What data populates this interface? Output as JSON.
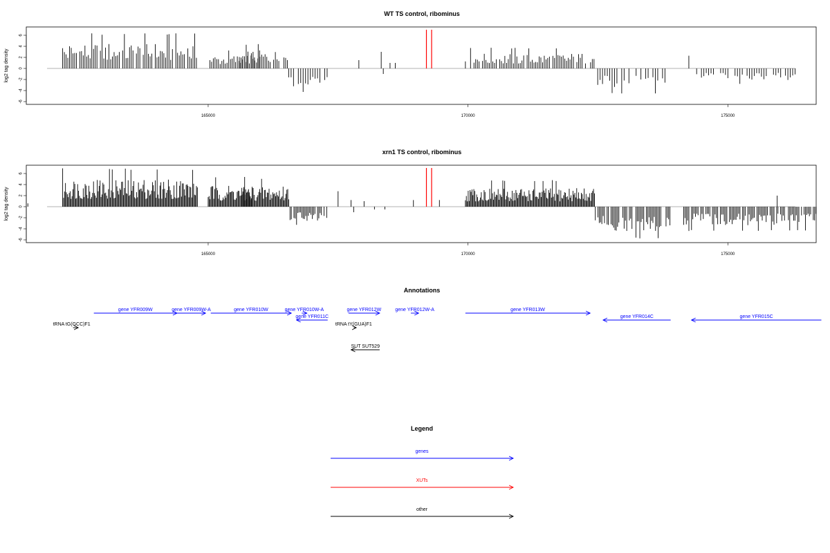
{
  "colors": {
    "genes": "#0000ff",
    "xuts": "#ff0000",
    "other": "#000000",
    "baseline": "#999999",
    "frame": "#000000"
  },
  "chart_data": [
    {
      "type": "bar",
      "title": "WT TS control, ribominus",
      "ylabel": "log2 tag density",
      "xlim": [
        161500,
        176700
      ],
      "ylim": [
        -6.5,
        7.5
      ],
      "x_ticks": [
        165000,
        170000,
        175000
      ],
      "y_ticks": [
        -6,
        -4,
        -2,
        0,
        2,
        4,
        6
      ],
      "plus_strand_segments": [
        {
          "start": 162200,
          "end": 164800,
          "max": 6.4
        },
        {
          "start": 165000,
          "end": 166000,
          "max": 3.4
        },
        {
          "start": 165600,
          "end": 166550,
          "max": 4.4
        },
        {
          "start": 169950,
          "end": 172450,
          "max": 3.8
        }
      ],
      "minus_strand_segments": [
        {
          "start": 166550,
          "end": 167300,
          "min": -4.3
        },
        {
          "start": 172450,
          "end": 173800,
          "min": -4.6
        },
        {
          "start": 174400,
          "end": 176300,
          "min": -2.8
        }
      ],
      "isolated_bars": [
        {
          "x": 167900,
          "y": 1.5
        },
        {
          "x": 168330,
          "y": 3.0
        },
        {
          "x": 168370,
          "y": -1.0
        },
        {
          "x": 168500,
          "y": 1.0
        },
        {
          "x": 168600,
          "y": 1.0
        },
        {
          "x": 174250,
          "y": 2.3
        }
      ],
      "xut_markers": [
        169200,
        169300
      ]
    },
    {
      "type": "bar",
      "title": "xrn1 TS control, ribominus",
      "ylabel": "log2 tag density",
      "xlim": [
        161500,
        176700
      ],
      "ylim": [
        -6.5,
        7.5
      ],
      "x_ticks": [
        165000,
        170000,
        175000
      ],
      "y_ticks": [
        -6,
        -4,
        -2,
        0,
        2,
        4,
        6
      ],
      "plus_strand_segments": [
        {
          "start": 162200,
          "end": 164800,
          "max": 7.0
        },
        {
          "start": 165000,
          "end": 165850,
          "max": 5.4
        },
        {
          "start": 165650,
          "end": 166550,
          "max": 5.2
        },
        {
          "start": 169950,
          "end": 172450,
          "max": 4.8
        }
      ],
      "minus_strand_segments": [
        {
          "start": 166550,
          "end": 167300,
          "min": -3.4
        },
        {
          "start": 172450,
          "end": 173900,
          "min": -5.8
        },
        {
          "start": 174150,
          "end": 176700,
          "min": -4.4
        }
      ],
      "isolated_bars": [
        {
          "x": 161530,
          "y": 0.6
        },
        {
          "x": 167500,
          "y": 2.8
        },
        {
          "x": 167750,
          "y": 1.2
        },
        {
          "x": 167800,
          "y": -1.0
        },
        {
          "x": 168000,
          "y": 1.0
        },
        {
          "x": 168200,
          "y": -0.5
        },
        {
          "x": 168400,
          "y": -0.5
        },
        {
          "x": 168950,
          "y": 1.2
        },
        {
          "x": 169450,
          "y": 1.2
        },
        {
          "x": 175950,
          "y": 2.0
        }
      ],
      "xut_markers": [
        169200,
        169300
      ]
    }
  ],
  "annotations": {
    "title": "Annotations",
    "xlim": [
      161500,
      176700
    ],
    "features": [
      {
        "label": "gene YFR009W",
        "start": 162800,
        "end": 164400,
        "strand": "+",
        "type": "gene",
        "row": 1
      },
      {
        "label": "gene YFR009W-A",
        "start": 164400,
        "end": 164950,
        "strand": "+",
        "type": "gene",
        "row": 1
      },
      {
        "label": "gene YFR010W",
        "start": 165050,
        "end": 166600,
        "strand": "+",
        "type": "gene",
        "row": 1
      },
      {
        "label": "gene YFR010W-A",
        "start": 166800,
        "end": 166900,
        "strand": "+",
        "type": "gene",
        "row": 1
      },
      {
        "label": "gene YFR011C",
        "start": 166700,
        "end": 167300,
        "strand": "-",
        "type": "gene",
        "row": 2
      },
      {
        "label": "gene YFR012W",
        "start": 167700,
        "end": 168300,
        "strand": "+",
        "type": "gene",
        "row": 1
      },
      {
        "label": "gene YFR012W-A",
        "start": 168900,
        "end": 169050,
        "strand": "+",
        "type": "gene",
        "row": 1
      },
      {
        "label": "gene YFR013W",
        "start": 169950,
        "end": 172350,
        "strand": "+",
        "type": "gene",
        "row": 1
      },
      {
        "label": "gene YFR014C",
        "start": 172600,
        "end": 173900,
        "strand": "-",
        "type": "gene",
        "row": 2
      },
      {
        "label": "gene YFR015C",
        "start": 174300,
        "end": 176800,
        "strand": "-",
        "type": "gene",
        "row": 2
      },
      {
        "label": "tRNA tG(GCC)F1",
        "start": 162400,
        "end": 162500,
        "strand": "+",
        "type": "other",
        "row": 3
      },
      {
        "label": "tRNA tY(GUA)F1",
        "start": 167800,
        "end": 167850,
        "strand": "+",
        "type": "other",
        "row": 3
      },
      {
        "label": "SUT SUT529",
        "start": 167750,
        "end": 168300,
        "strand": "-",
        "type": "other",
        "row": 4
      }
    ]
  },
  "legend": {
    "title": "Legend",
    "items": [
      {
        "label": "genes",
        "color": "#0000ff"
      },
      {
        "label": "XUTs",
        "color": "#ff0000"
      },
      {
        "label": "other",
        "color": "#000000"
      }
    ]
  }
}
